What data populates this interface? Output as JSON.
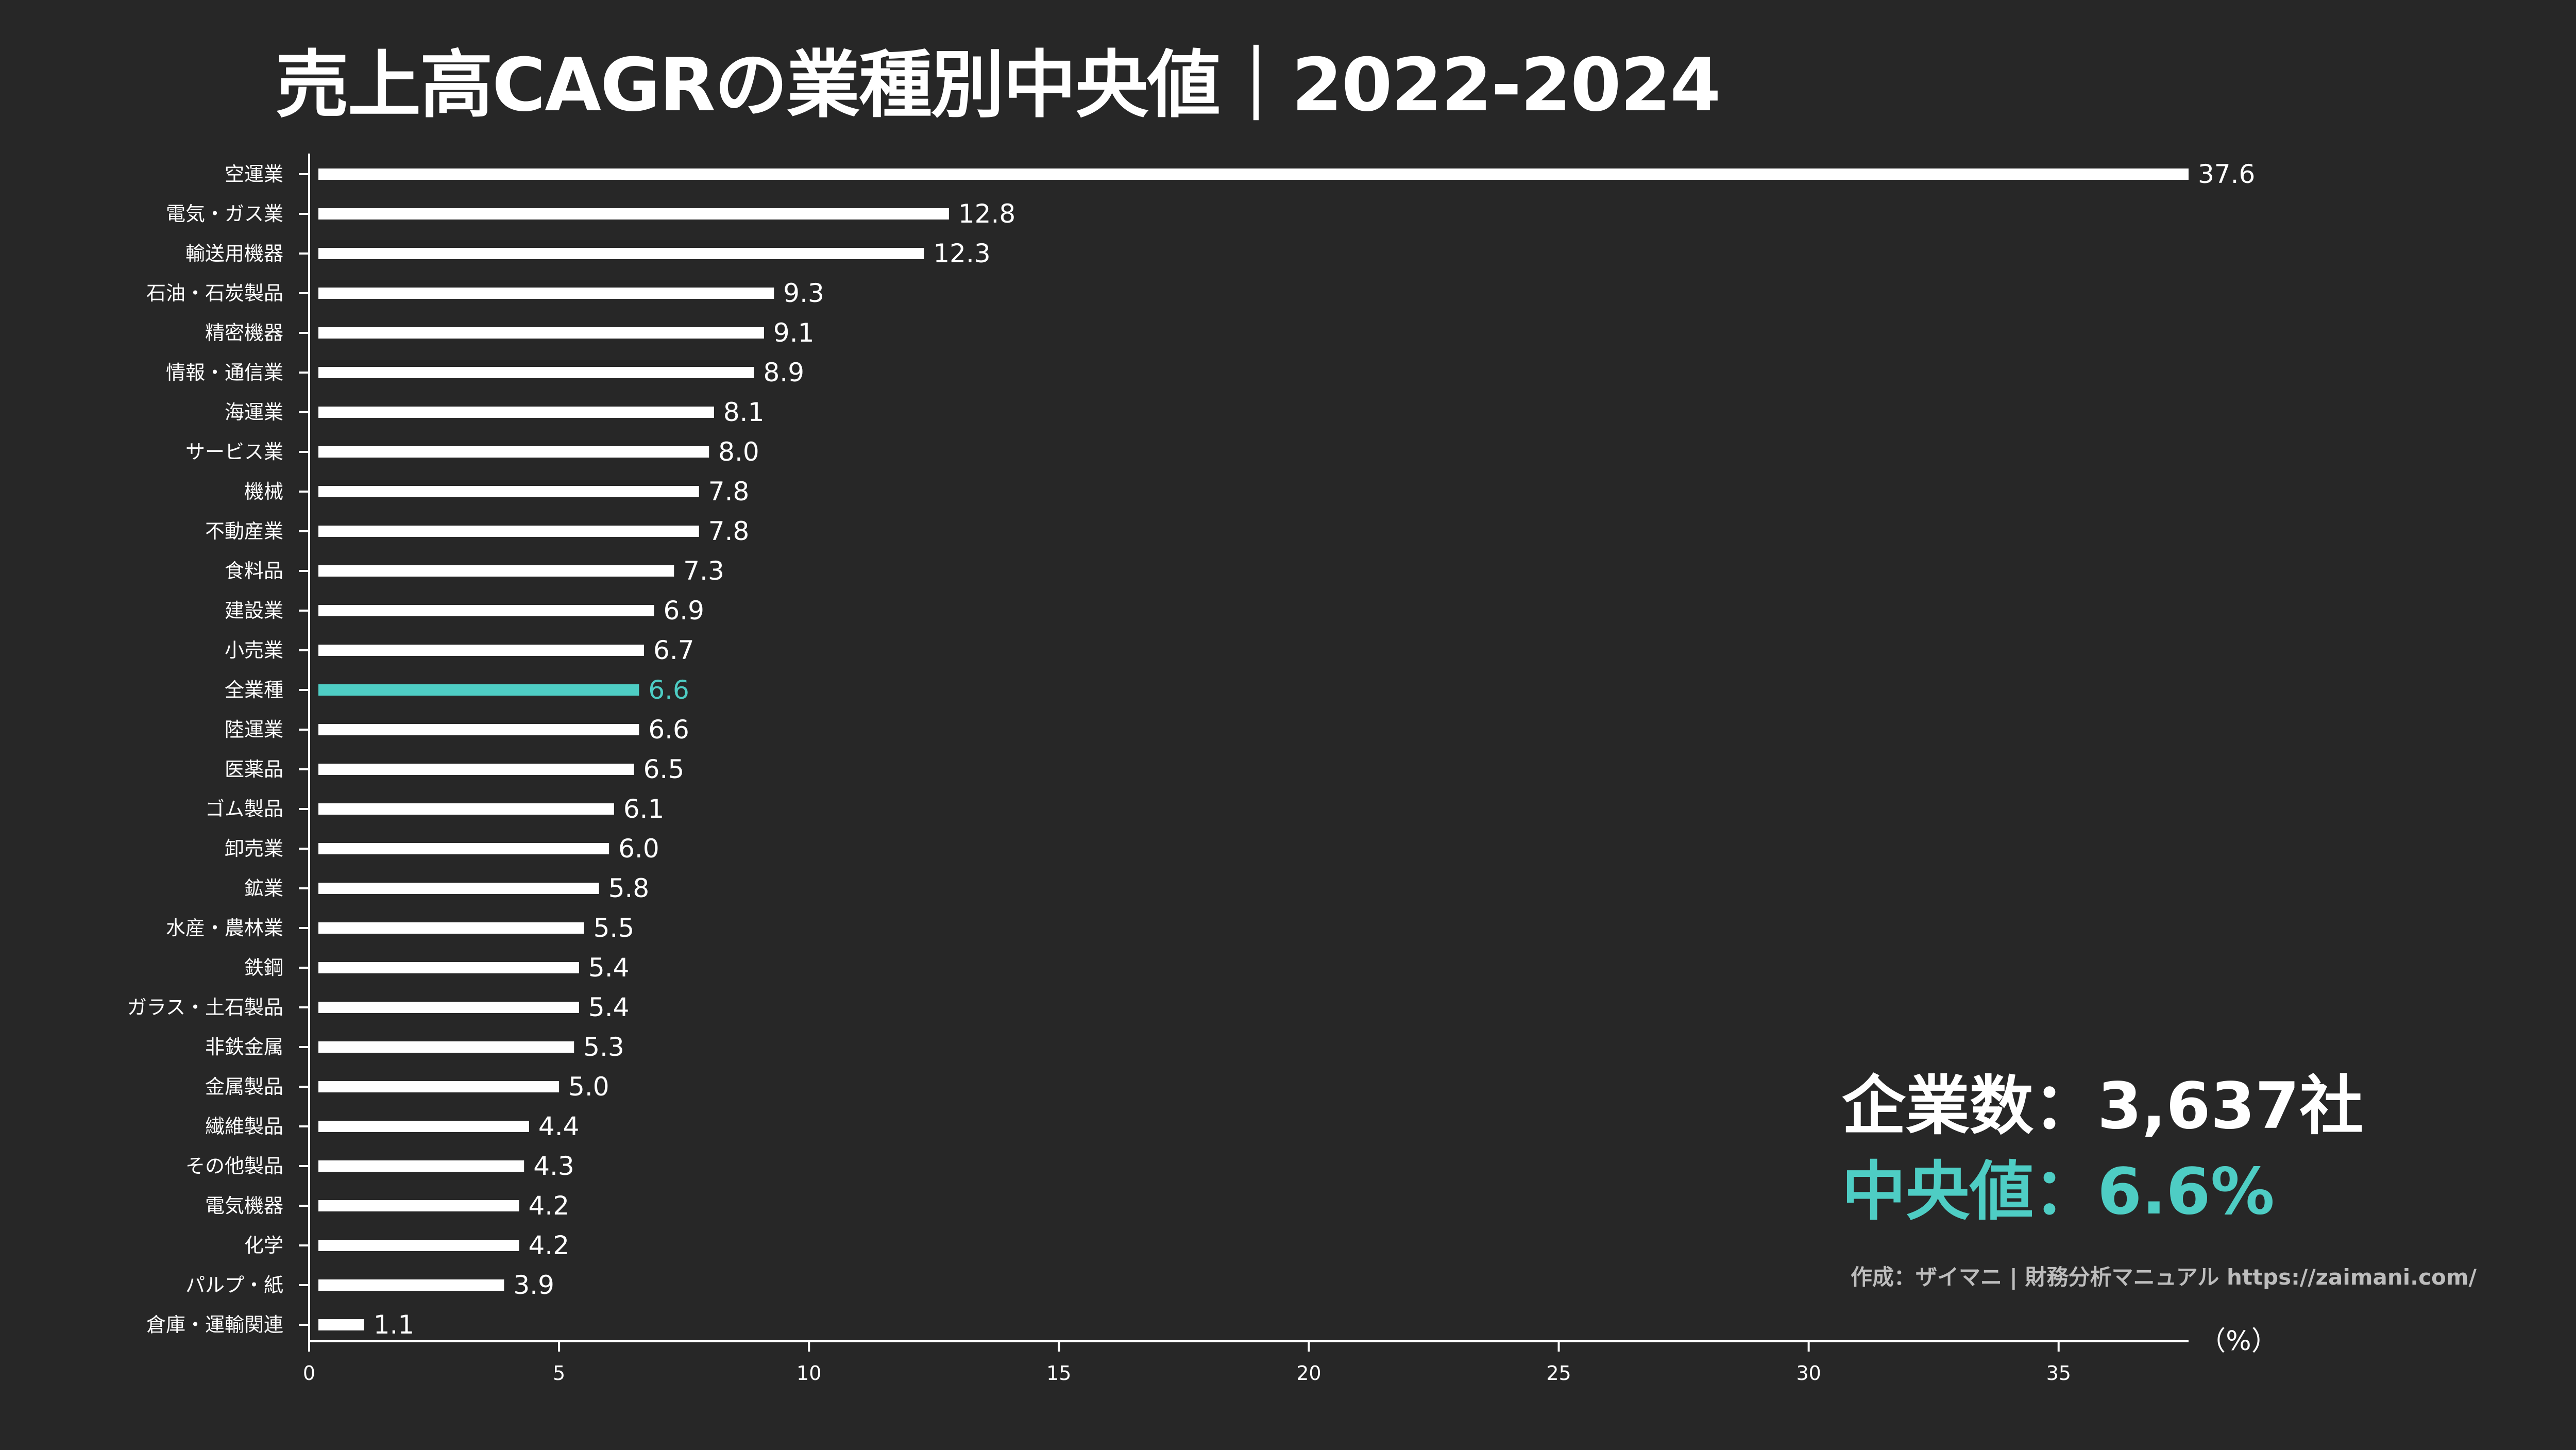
{
  "colors": {
    "background": "#272727",
    "bar": "#ffffff",
    "highlight": "#4ecdc4",
    "text": "#ffffff",
    "credit": "#bdbdbd"
  },
  "stats": {
    "companies_text": "企業数：3,637社",
    "median_text": "中央値：6.6%"
  },
  "credit": "作成：ザイマニ | 財務分析マニュアル https://zaimani.com/",
  "chart_data": {
    "type": "bar",
    "orientation": "horizontal",
    "title": "売上高CAGRの業種別中央値｜2022-2024",
    "xlabel": "（%）",
    "ylabel": "",
    "xlim": [
      0,
      37.6
    ],
    "xticks": [
      0,
      5,
      10,
      15,
      20,
      25,
      30,
      35
    ],
    "grid": false,
    "highlight_category": "全業種",
    "categories": [
      "空運業",
      "電気・ガス業",
      "輸送用機器",
      "石油・石炭製品",
      "精密機器",
      "情報・通信業",
      "海運業",
      "サービス業",
      "機械",
      "不動産業",
      "食料品",
      "建設業",
      "小売業",
      "全業種",
      "陸運業",
      "医薬品",
      "ゴム製品",
      "卸売業",
      "鉱業",
      "水産・農林業",
      "鉄鋼",
      "ガラス・土石製品",
      "非鉄金属",
      "金属製品",
      "繊維製品",
      "その他製品",
      "電気機器",
      "化学",
      "パルプ・紙",
      "倉庫・運輸関連"
    ],
    "values": [
      37.6,
      12.8,
      12.3,
      9.3,
      9.1,
      8.9,
      8.1,
      8.0,
      7.8,
      7.8,
      7.3,
      6.9,
      6.7,
      6.6,
      6.6,
      6.5,
      6.1,
      6.0,
      5.8,
      5.5,
      5.4,
      5.4,
      5.3,
      5.0,
      4.4,
      4.3,
      4.2,
      4.2,
      3.9,
      1.1
    ],
    "value_labels": [
      "37.6",
      "12.8",
      "12.3",
      "9.3",
      "9.1",
      "8.9",
      "8.1",
      "8.0",
      "7.8",
      "7.8",
      "7.3",
      "6.9",
      "6.7",
      "6.6",
      "6.6",
      "6.5",
      "6.1",
      "6.0",
      "5.8",
      "5.5",
      "5.4",
      "5.4",
      "5.3",
      "5.0",
      "4.4",
      "4.3",
      "4.2",
      "4.2",
      "3.9",
      "1.1"
    ]
  }
}
